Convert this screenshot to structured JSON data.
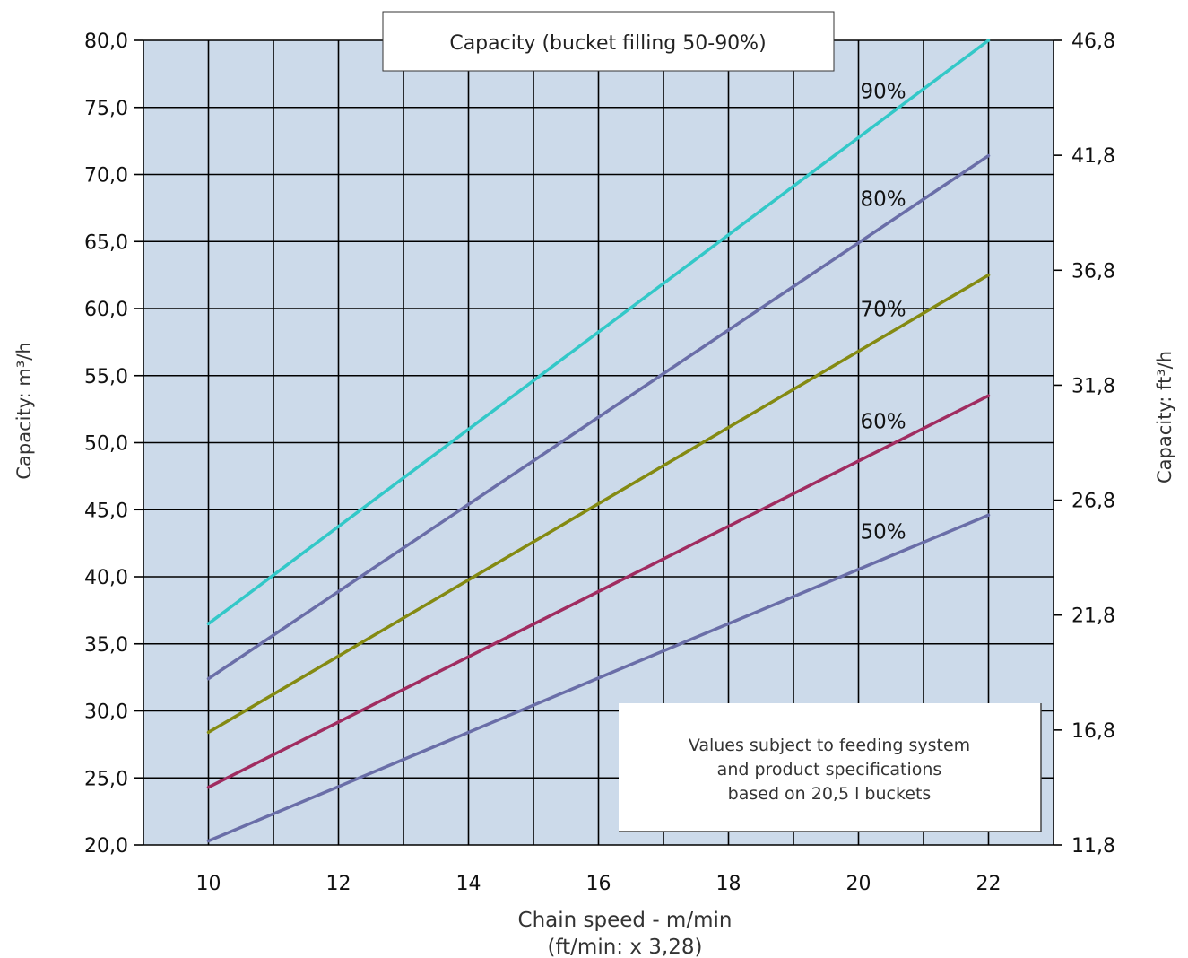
{
  "chart_data": {
    "type": "line",
    "title": "Capacity (bucket filling 50-90%)",
    "xlabel": "Chain speed - m/min",
    "xlabel_sub": "(ft/min: x 3,28)",
    "ylabel": "Capacity: m³/h",
    "ylabel_right": "Capacity: ft³/h",
    "xlim": [
      9,
      23
    ],
    "ylim": [
      20,
      80
    ],
    "x_ticks": [
      10,
      12,
      14,
      16,
      18,
      20,
      22
    ],
    "x_tick_labels": [
      "10",
      "12",
      "14",
      "16",
      "18",
      "20",
      "22"
    ],
    "y_ticks": [
      20,
      25,
      30,
      35,
      40,
      45,
      50,
      55,
      60,
      65,
      70,
      75,
      80
    ],
    "y_tick_labels": [
      "20,0",
      "25,0",
      "30,0",
      "35,0",
      "40,0",
      "45,0",
      "50,0",
      "55,0",
      "60,0",
      "65,0",
      "70,0",
      "75,0",
      "80,0"
    ],
    "y2_ticks": [
      11.8,
      16.8,
      21.8,
      26.8,
      31.8,
      36.8,
      41.8,
      46.8
    ],
    "y2_tick_labels": [
      "11,8",
      "16,8",
      "21,8",
      "26,8",
      "31,8",
      "36,8",
      "41,8",
      "46,8"
    ],
    "y2lim": [
      11.8,
      46.8
    ],
    "grid": true,
    "background": "#ccdaea",
    "series": [
      {
        "name": "90%",
        "color": "#33c8c8",
        "x": [
          10,
          22
        ],
        "y": [
          36.5,
          80
        ]
      },
      {
        "name": "80%",
        "color": "#6a6ea8",
        "x": [
          10,
          22
        ],
        "y": [
          32.4,
          71.4
        ]
      },
      {
        "name": "70%",
        "color": "#848a12",
        "x": [
          10,
          22
        ],
        "y": [
          28.4,
          62.5
        ]
      },
      {
        "name": "60%",
        "color": "#a02c60",
        "x": [
          10,
          22
        ],
        "y": [
          24.3,
          53.5
        ]
      },
      {
        "name": "50%",
        "color": "#6a6ea8",
        "x": [
          10,
          22
        ],
        "y": [
          20.3,
          44.6
        ]
      }
    ],
    "note": [
      "Values subject to feeding system",
      "and product specifications",
      "based on 20,5 l buckets"
    ]
  }
}
